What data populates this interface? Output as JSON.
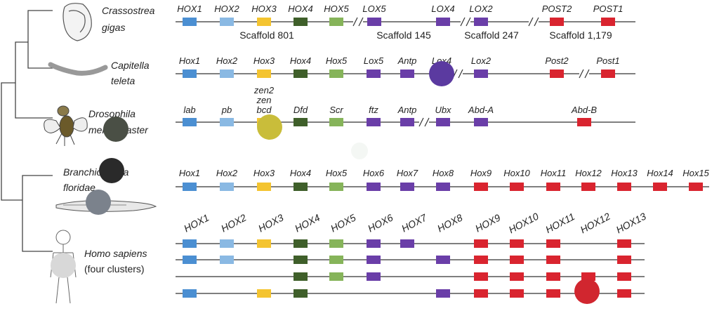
{
  "colors": {
    "hox1": "#4b8fd2",
    "hox2": "#8ab9e3",
    "hox3": "#f4c430",
    "hox4": "#3f5f2a",
    "hox5": "#86b45a",
    "central": "#6a3ea8",
    "posterior": "#d9242f",
    "line": "#333333",
    "tree": "#444444"
  },
  "species": [
    {
      "name_line1": "Crassostrea",
      "name_line2": "gigas",
      "organism_icon": "oyster-icon",
      "genes": [
        {
          "label": "HOX1",
          "color": "hox1"
        },
        {
          "label": "HOX2",
          "color": "hox2"
        },
        {
          "label": "HOX3",
          "color": "hox3"
        },
        {
          "label": "HOX4",
          "color": "hox4"
        },
        {
          "label": "HOX5",
          "color": "hox5"
        },
        {
          "label": "LOX5",
          "color": "central"
        },
        {
          "label": "LOX4",
          "color": "central"
        },
        {
          "label": "LOX2",
          "color": "central"
        },
        {
          "label": "POST2",
          "color": "posterior"
        },
        {
          "label": "POST1",
          "color": "posterior"
        }
      ],
      "scaffolds": [
        "Scaffold 801",
        "Scaffold 145",
        "Scaffold 247",
        "Scaffold 1,179"
      ]
    },
    {
      "name_line1": "Capitella",
      "name_line2": "teleta",
      "organism_icon": "worm-icon",
      "genes": [
        {
          "label": "Hox1",
          "color": "hox1"
        },
        {
          "label": "Hox2",
          "color": "hox2"
        },
        {
          "label": "Hox3",
          "color": "hox3"
        },
        {
          "label": "Hox4",
          "color": "hox4"
        },
        {
          "label": "Hox5",
          "color": "hox5"
        },
        {
          "label": "Lox5",
          "color": "central"
        },
        {
          "label": "Antp",
          "color": "central"
        },
        {
          "label": "Lox4",
          "color": "central"
        },
        {
          "label": "Lox2",
          "color": "central"
        },
        {
          "label": "Post2",
          "color": "posterior"
        },
        {
          "label": "Post1",
          "color": "posterior"
        }
      ]
    },
    {
      "name_line1": "Drosophila",
      "name_line2": "melanogaster",
      "organism_icon": "fly-icon",
      "genes": [
        {
          "label": "lab",
          "color": "hox1"
        },
        {
          "label": "pb",
          "color": "hox2"
        },
        {
          "label": "zen2\nzen\nbcd",
          "color": "hox3"
        },
        {
          "label": "Dfd",
          "color": "hox4"
        },
        {
          "label": "Scr",
          "color": "hox5"
        },
        {
          "label": "ftz",
          "color": "central"
        },
        {
          "label": "Antp",
          "color": "central"
        },
        {
          "label": "Ubx",
          "color": "central"
        },
        {
          "label": "Abd-A",
          "color": "central"
        },
        {
          "label": "Abd-B",
          "color": "posterior"
        }
      ]
    },
    {
      "name_line1": "Branchiostoma",
      "name_line2": "floridae",
      "organism_icon": "amphioxus-icon",
      "genes": [
        {
          "label": "Hox1",
          "color": "hox1"
        },
        {
          "label": "Hox2",
          "color": "hox2"
        },
        {
          "label": "Hox3",
          "color": "hox3"
        },
        {
          "label": "Hox4",
          "color": "hox4"
        },
        {
          "label": "Hox5",
          "color": "hox5"
        },
        {
          "label": "Hox6",
          "color": "central"
        },
        {
          "label": "Hox7",
          "color": "central"
        },
        {
          "label": "Hox8",
          "color": "central"
        },
        {
          "label": "Hox9",
          "color": "posterior"
        },
        {
          "label": "Hox10",
          "color": "posterior"
        },
        {
          "label": "Hox11",
          "color": "posterior"
        },
        {
          "label": "Hox12",
          "color": "posterior"
        },
        {
          "label": "Hox13",
          "color": "posterior"
        },
        {
          "label": "Hox14",
          "color": "posterior"
        },
        {
          "label": "Hox15",
          "color": "posterior"
        }
      ]
    },
    {
      "name_line1": "Homo sapiens",
      "name_line2": "(four clusters)",
      "organism_icon": "human-icon",
      "header_labels": [
        "HOX1",
        "HOX2",
        "HOX3",
        "HOX4",
        "HOX5",
        "HOX6",
        "HOX7",
        "HOX8",
        "HOX9",
        "HOX10",
        "HOX11",
        "HOX12",
        "HOX13"
      ],
      "clusters": [
        {
          "present": [
            1,
            2,
            3,
            4,
            5,
            6,
            7,
            0,
            9,
            10,
            11,
            0,
            13
          ]
        },
        {
          "present": [
            1,
            2,
            0,
            4,
            5,
            6,
            0,
            8,
            9,
            10,
            11,
            0,
            13
          ]
        },
        {
          "present": [
            0,
            0,
            0,
            4,
            5,
            6,
            0,
            0,
            9,
            10,
            11,
            12,
            13
          ]
        },
        {
          "present": [
            1,
            0,
            3,
            4,
            0,
            0,
            0,
            8,
            9,
            10,
            11,
            12,
            13
          ]
        }
      ]
    }
  ]
}
